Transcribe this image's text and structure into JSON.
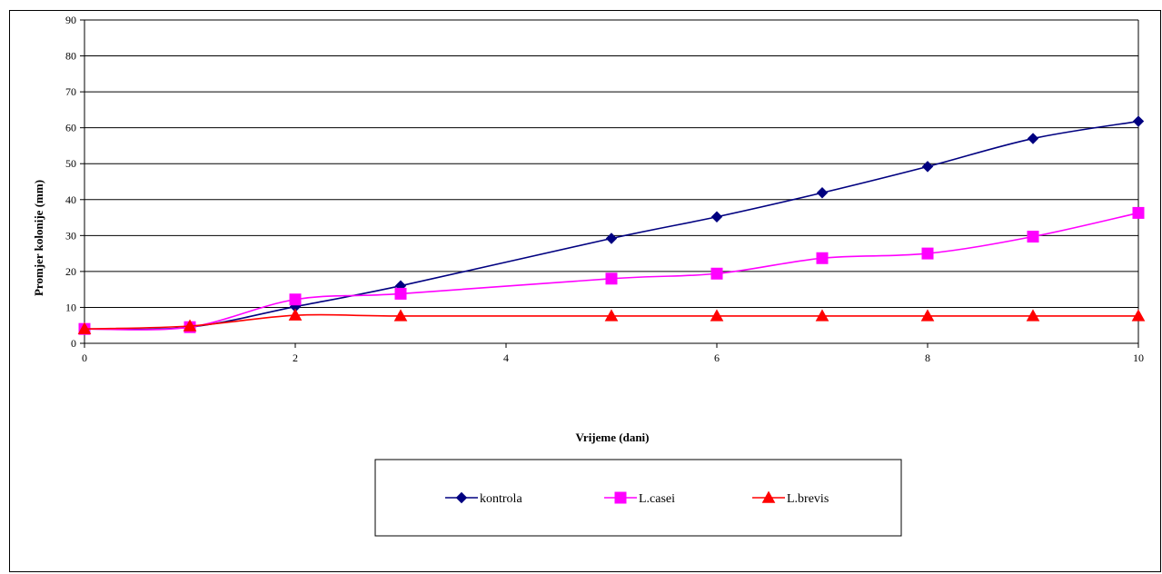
{
  "chart_data": {
    "type": "line",
    "xlabel": "Vrijeme (dani)",
    "ylabel": "Promjer kolonije (mm)",
    "xlim": [
      0,
      10
    ],
    "ylim": [
      0,
      90
    ],
    "xticks": [
      0,
      2,
      4,
      6,
      8,
      10
    ],
    "yticks": [
      0,
      10,
      20,
      30,
      40,
      50,
      60,
      70,
      80,
      90
    ],
    "grid": "horizontal",
    "legend_position": "bottom",
    "series": [
      {
        "name": "kontrola",
        "color": "#000080",
        "marker": "diamond",
        "points": [
          [
            0,
            4
          ],
          [
            1,
            4.5
          ],
          [
            2,
            10.2
          ],
          [
            3,
            16
          ],
          [
            5,
            29.2
          ],
          [
            6,
            35.2
          ],
          [
            7,
            41.9
          ],
          [
            8,
            49.2
          ],
          [
            9,
            57
          ],
          [
            10,
            61.8
          ]
        ]
      },
      {
        "name": "L.casei",
        "color": "#FF00FF",
        "marker": "square",
        "points": [
          [
            0,
            4
          ],
          [
            1,
            4.5
          ],
          [
            2,
            12.2
          ],
          [
            3,
            13.8
          ],
          [
            5,
            18
          ],
          [
            6,
            19.4
          ],
          [
            7,
            23.7
          ],
          [
            8,
            25
          ],
          [
            9,
            29.7
          ],
          [
            10,
            36.3
          ]
        ]
      },
      {
        "name": "L.brevis",
        "color": "#FF0000",
        "marker": "triangle",
        "points": [
          [
            0,
            4
          ],
          [
            1,
            4.8
          ],
          [
            2,
            7.8
          ],
          [
            3,
            7.6
          ],
          [
            5,
            7.6
          ],
          [
            6,
            7.6
          ],
          [
            7,
            7.6
          ],
          [
            8,
            7.6
          ],
          [
            9,
            7.6
          ],
          [
            10,
            7.6
          ]
        ]
      }
    ]
  }
}
